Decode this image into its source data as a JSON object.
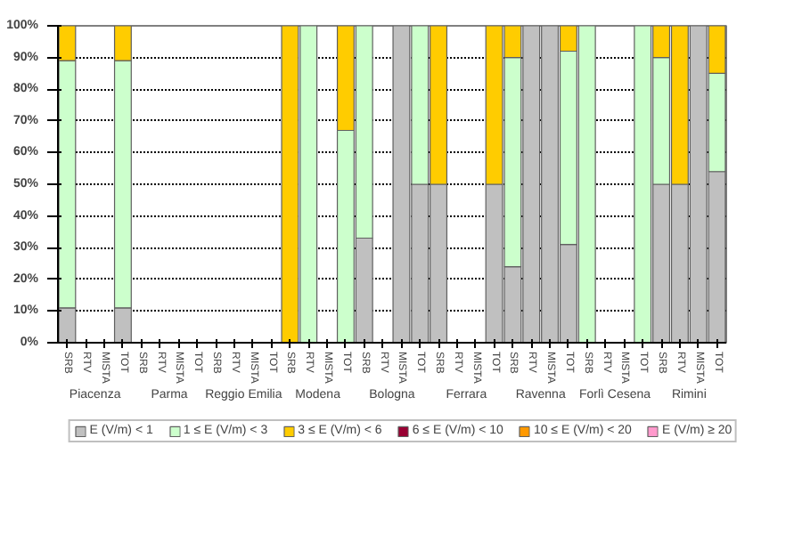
{
  "chart_data": {
    "type": "bar",
    "stacked": true,
    "categories": [
      "SRB",
      "RTV",
      "MISTA",
      "TOT",
      "SRB",
      "RTV",
      "MISTA",
      "TOT",
      "SRB",
      "RTV",
      "MISTA",
      "TOT",
      "SRB",
      "RTV",
      "MISTA",
      "TOT",
      "SRB",
      "RTV",
      "MISTA",
      "TOT",
      "SRB",
      "RTV",
      "MISTA",
      "TOT",
      "SRB",
      "RTV",
      "MISTA",
      "TOT",
      "SRB",
      "RTV",
      "MISTA",
      "TOT",
      "SRB",
      "RTV",
      "MISTA",
      "TOT"
    ],
    "annotations": [
      "Piacenza",
      "Parma",
      "Reggio Emilia",
      "Modena",
      "Bologna",
      "Ferrara",
      "Ravenna",
      "Forlì Cesena",
      "Rimini"
    ],
    "series": [
      {
        "name": "E (V/m) < 1",
        "color": "#c0c0c0",
        "values": [
          11,
          0,
          0,
          11,
          0,
          0,
          0,
          0,
          0,
          0,
          0,
          0,
          0,
          0,
          0,
          0,
          33,
          0,
          100,
          50,
          50,
          0,
          0,
          50,
          24,
          100,
          100,
          31,
          0,
          0,
          0,
          0,
          50,
          50,
          100,
          54
        ]
      },
      {
        "name": "1 ≤ E (V/m) < 3",
        "color": "#ccffcc",
        "values": [
          78,
          0,
          0,
          78,
          0,
          0,
          0,
          0,
          0,
          0,
          0,
          0,
          0,
          100,
          0,
          67,
          67,
          0,
          0,
          50,
          0,
          0,
          0,
          0,
          66,
          0,
          0,
          61,
          100,
          0,
          0,
          100,
          40,
          0,
          0,
          31
        ]
      },
      {
        "name": "3 ≤ E (V/m) < 6",
        "color": "#ffcc00",
        "values": [
          11,
          0,
          0,
          11,
          0,
          0,
          0,
          0,
          0,
          0,
          0,
          0,
          100,
          0,
          0,
          33,
          0,
          0,
          0,
          0,
          50,
          0,
          0,
          50,
          10,
          0,
          0,
          8,
          0,
          0,
          0,
          0,
          10,
          50,
          0,
          15
        ]
      },
      {
        "name": "6 ≤ E (V/m) < 10",
        "color": "#990033",
        "values": [
          0,
          0,
          0,
          0,
          0,
          0,
          0,
          0,
          0,
          0,
          0,
          0,
          0,
          0,
          0,
          0,
          0,
          0,
          0,
          0,
          0,
          0,
          0,
          0,
          0,
          0,
          0,
          0,
          0,
          0,
          0,
          0,
          0,
          0,
          0,
          0
        ]
      },
      {
        "name": "10 ≤ E (V/m) < 20",
        "color": "#ff9900",
        "values": [
          0,
          0,
          0,
          0,
          0,
          0,
          0,
          0,
          0,
          0,
          0,
          0,
          0,
          0,
          0,
          0,
          0,
          0,
          0,
          0,
          0,
          0,
          0,
          0,
          0,
          0,
          0,
          0,
          0,
          0,
          0,
          0,
          0,
          0,
          0,
          0
        ]
      },
      {
        "name": "E (V/m) ≥ 20",
        "color": "#ff99cc",
        "values": [
          0,
          0,
          0,
          0,
          0,
          0,
          0,
          0,
          0,
          0,
          0,
          0,
          0,
          0,
          0,
          0,
          0,
          0,
          0,
          0,
          0,
          0,
          0,
          0,
          0,
          0,
          0,
          0,
          0,
          0,
          0,
          0,
          0,
          0,
          0,
          0
        ]
      }
    ],
    "ylim": [
      0,
      100
    ],
    "yticks": [
      {
        "value": 0,
        "label": "0%"
      },
      {
        "value": 10,
        "label": "10%"
      },
      {
        "value": 20,
        "label": "20%"
      },
      {
        "value": 30,
        "label": "30%"
      },
      {
        "value": 40,
        "label": "40%"
      },
      {
        "value": 50,
        "label": "50%"
      },
      {
        "value": 60,
        "label": "60%"
      },
      {
        "value": 70,
        "label": "70%"
      },
      {
        "value": 80,
        "label": "80%"
      },
      {
        "value": 90,
        "label": "90%"
      },
      {
        "value": 100,
        "label": "100%"
      }
    ],
    "grid": "y",
    "legend": "bottom"
  }
}
